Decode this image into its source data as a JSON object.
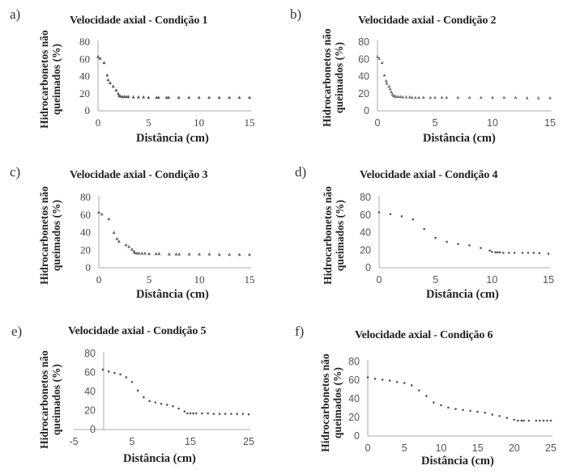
{
  "figure": {
    "panels": [
      {
        "letter": "a)",
        "title": "Velocidade axial  - Condição 1",
        "ylabel_line1": "Hidrocarbonetos não",
        "ylabel_line2": "queimados (%)",
        "xlabel": "Distância (cm)"
      },
      {
        "letter": "b)",
        "title": "Velocidade axial  - Condição 2",
        "ylabel_line1": "Hidrocarbonetos não",
        "ylabel_line2": "queimados (%)",
        "xlabel": "Distância (cm)"
      },
      {
        "letter": "c)",
        "title": "Velocidade axial  - Condição 3",
        "ylabel_line1": "Hidrocarbonetos não",
        "ylabel_line2": "queimados (%)",
        "xlabel": "Distância (cm)"
      },
      {
        "letter": "d)",
        "title": "Velocidade axial  - Condição 4",
        "ylabel_line1": "Hidrocarbonetos não",
        "ylabel_line2": "queimados (%)",
        "xlabel": "Distância (cm)"
      },
      {
        "letter": "e)",
        "title": "Velocidade axial  - Condição 5",
        "ylabel_line1": "Hidrocarbonetos não",
        "ylabel_line2": "queimados (%)",
        "xlabel": "Distância (cm)"
      },
      {
        "letter": "f)",
        "title": "Velocidade axial  - Condição 6",
        "ylabel_line1": "Hidrocarbonetos não",
        "ylabel_line2": "queimados (%)",
        "xlabel": "Distância (cm)"
      }
    ]
  },
  "chart_data": [
    {
      "type": "scatter",
      "title": "Velocidade axial - Condição 1",
      "xlabel": "Distância (cm)",
      "ylabel": "Hidrocarbonetos não queimados (%)",
      "xlim": [
        0,
        15
      ],
      "ylim": [
        0,
        80
      ],
      "xticks": [
        0,
        5,
        10,
        15
      ],
      "yticks": [
        0,
        20,
        40,
        60,
        80
      ],
      "grid": false,
      "legend": "none",
      "marker": "triangle",
      "color": "#555555",
      "x": [
        0,
        0.2,
        0.6,
        0.9,
        1.0,
        1.2,
        1.5,
        1.8,
        2.0,
        2.1,
        2.2,
        2.4,
        2.6,
        2.8,
        3.0,
        3.5,
        4.0,
        4.5,
        5.0,
        5.8,
        6.0,
        6.8,
        7.0,
        8,
        9,
        10,
        11,
        12,
        13,
        14,
        15
      ],
      "y": [
        63,
        61,
        56,
        41.5,
        36,
        32.5,
        28.5,
        24,
        20,
        17.5,
        17,
        16.5,
        16.5,
        16.5,
        16.5,
        16,
        16,
        16,
        15.5,
        15.5,
        15.5,
        15.5,
        15.5,
        15.5,
        15.5,
        15.5,
        15.5,
        15.5,
        15.5,
        15.5,
        15.5
      ]
    },
    {
      "type": "scatter",
      "title": "Velocidade axial - Condição 2",
      "xlabel": "Distância (cm)",
      "ylabel": "Hidrocarbonetos não queimados (%)",
      "xlim": [
        0,
        15
      ],
      "ylim": [
        0,
        80
      ],
      "xticks": [
        0,
        5,
        10,
        15
      ],
      "yticks": [
        0,
        20,
        40,
        60,
        80
      ],
      "grid": false,
      "legend": "none",
      "marker": "triangle",
      "color": "#777777",
      "x": [
        0,
        0.15,
        0.4,
        0.6,
        0.75,
        0.8,
        1.0,
        1.1,
        1.2,
        1.3,
        1.4,
        1.5,
        1.6,
        1.8,
        2.0,
        2.2,
        2.5,
        2.8,
        3.0,
        3.3,
        3.6,
        4.0,
        4.6,
        5.0,
        5.6,
        6.0,
        7,
        8,
        9,
        10,
        11,
        12,
        13,
        14,
        15
      ],
      "y": [
        63,
        61,
        56,
        41.5,
        35,
        32,
        28.5,
        25.5,
        22,
        19,
        17.5,
        17,
        16.5,
        16.5,
        16.5,
        16,
        16,
        16,
        15.5,
        15.5,
        15.5,
        15.5,
        15.5,
        15.5,
        15.5,
        15.5,
        15.5,
        15.5,
        15.5,
        15.5,
        15.5,
        15.5,
        15,
        15,
        15
      ]
    },
    {
      "type": "scatter",
      "title": "Velocidade axial - Condição 3",
      "xlabel": "Distância (cm)",
      "ylabel": "Hidrocarbonetos não queimados (%)",
      "xlim": [
        0,
        15
      ],
      "ylim": [
        0,
        80
      ],
      "xticks": [
        0,
        5,
        10,
        15
      ],
      "yticks": [
        0,
        20,
        40,
        60,
        80
      ],
      "grid": false,
      "legend": "none",
      "marker": "triangle",
      "color": "#666666",
      "x": [
        0,
        0.3,
        1.0,
        1.5,
        1.8,
        2.0,
        2.7,
        3.0,
        3.3,
        3.5,
        3.6,
        3.8,
        4.0,
        4.3,
        4.6,
        5.0,
        5.7,
        6.0,
        7.0,
        7.7,
        8.0,
        9,
        10,
        11,
        12,
        13,
        14,
        15
      ],
      "y": [
        63,
        61,
        55.5,
        40,
        33,
        30,
        26,
        24,
        21,
        18.5,
        17,
        16.5,
        16.5,
        16.5,
        16.5,
        16,
        16,
        16,
        15.5,
        15.5,
        15.5,
        15.5,
        15.5,
        15.5,
        15,
        15,
        15,
        15
      ]
    },
    {
      "type": "scatter",
      "title": "Velocidade axial - Condição 4",
      "xlabel": "Distância (cm)",
      "ylabel": "Hidrocarbonetos não queimados (%)",
      "xlim": [
        0,
        15
      ],
      "ylim": [
        0,
        80
      ],
      "xticks": [
        0,
        5,
        10,
        15
      ],
      "yticks": [
        0,
        20,
        40,
        60,
        80
      ],
      "grid": false,
      "legend": "none",
      "marker": "dot",
      "color": "#555555",
      "x": [
        0,
        1,
        2,
        3,
        4,
        5,
        6,
        7,
        8,
        9,
        9.8,
        10,
        10.3,
        10.5,
        10.7,
        11,
        11.5,
        12,
        12.7,
        13.2,
        13.7,
        14.2,
        15
      ],
      "y": [
        63,
        61,
        58.5,
        55,
        44,
        34,
        29.5,
        27,
        25.5,
        22.5,
        19.5,
        18,
        17.5,
        17.5,
        17.5,
        17,
        17,
        17,
        17,
        17,
        17,
        16.5,
        16
      ]
    },
    {
      "type": "scatter",
      "title": "Velocidade axial - Condição 5",
      "xlabel": "Distância (cm)",
      "ylabel": "Hidrocarbonetos não queimados (%)",
      "xlim": [
        -5,
        25
      ],
      "ylim": [
        0,
        80
      ],
      "xticks": [
        -5,
        5,
        15,
        25
      ],
      "yticks": [
        0,
        20,
        40,
        60,
        80
      ],
      "grid": false,
      "legend": "none",
      "marker": "dot",
      "color": "#555555",
      "x": [
        0,
        1,
        2,
        3,
        4,
        5,
        6,
        7,
        8,
        9,
        10,
        11,
        12,
        13,
        14,
        14.5,
        15,
        15.5,
        16,
        17,
        18,
        19,
        20,
        21,
        22,
        23,
        24,
        25
      ],
      "y": [
        63,
        61,
        59.5,
        58,
        55,
        50,
        41,
        34,
        30,
        28.5,
        27,
        26,
        24.5,
        22,
        19,
        17,
        17,
        17,
        17,
        17,
        17,
        16.5,
        16.5,
        16.5,
        16.5,
        16.5,
        16.5,
        16
      ]
    },
    {
      "type": "scatter",
      "title": "Velocidade axial - Condição 6",
      "xlabel": "Distância (cm)",
      "ylabel": "Hidrocarbonetos não queimados (%)",
      "xlim": [
        0,
        25
      ],
      "ylim": [
        0,
        80
      ],
      "xticks": [
        0,
        5,
        10,
        15,
        20,
        25
      ],
      "yticks": [
        0,
        20,
        40,
        60,
        80
      ],
      "grid": false,
      "legend": "none",
      "marker": "dot",
      "color": "#555555",
      "x": [
        0,
        1,
        2,
        3,
        4,
        5,
        6,
        7,
        8,
        9,
        10,
        11,
        12,
        13,
        14,
        15,
        16,
        17,
        18,
        19,
        20,
        20.5,
        21,
        21.3,
        22,
        23,
        23.5,
        24,
        24.5,
        25
      ],
      "y": [
        63,
        61.5,
        60.5,
        59.5,
        58,
        57,
        54.5,
        49,
        43,
        36,
        33,
        30.5,
        29,
        28,
        27,
        26,
        25,
        23,
        21.5,
        19.5,
        17.5,
        16.5,
        16.5,
        16.5,
        16.5,
        16.5,
        16.5,
        16.5,
        16.5,
        16.5
      ]
    }
  ]
}
